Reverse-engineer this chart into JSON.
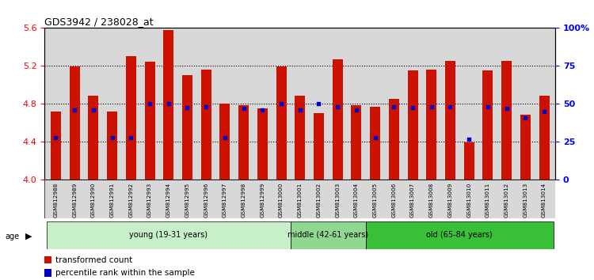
{
  "title": "GDS3942 / 238028_at",
  "samples": [
    "GSM812988",
    "GSM812989",
    "GSM812990",
    "GSM812991",
    "GSM812992",
    "GSM812993",
    "GSM812994",
    "GSM812995",
    "GSM812996",
    "GSM812997",
    "GSM812998",
    "GSM812999",
    "GSM813000",
    "GSM813001",
    "GSM813002",
    "GSM813003",
    "GSM813004",
    "GSM813005",
    "GSM813006",
    "GSM813007",
    "GSM813008",
    "GSM813009",
    "GSM813010",
    "GSM813011",
    "GSM813012",
    "GSM813013",
    "GSM813014"
  ],
  "red_values": [
    4.72,
    5.19,
    4.88,
    4.72,
    5.3,
    5.24,
    5.58,
    5.1,
    5.16,
    4.8,
    4.78,
    4.75,
    5.19,
    4.88,
    4.7,
    5.27,
    4.78,
    4.77,
    4.85,
    5.15,
    5.16,
    5.25,
    4.39,
    5.15,
    5.25,
    4.68,
    4.88
  ],
  "blue_values": [
    4.44,
    4.73,
    4.73,
    4.44,
    4.44,
    4.8,
    4.8,
    4.76,
    4.77,
    4.44,
    4.75,
    4.73,
    4.8,
    4.73,
    4.8,
    4.77,
    4.73,
    4.44,
    4.77,
    4.76,
    4.77,
    4.77,
    4.42,
    4.77,
    4.75,
    4.65,
    4.72
  ],
  "groups": [
    {
      "label": "young (19-31 years)",
      "start": 0,
      "end": 13,
      "color": "#c8f0c8"
    },
    {
      "label": "middle (42-61 years)",
      "start": 13,
      "end": 17,
      "color": "#90d890"
    },
    {
      "label": "old (65-84 years)",
      "start": 17,
      "end": 27,
      "color": "#38c038"
    }
  ],
  "ylim_left": [
    4.0,
    5.6
  ],
  "ylim_right": [
    0,
    100
  ],
  "yticks_left": [
    4.0,
    4.4,
    4.8,
    5.2,
    5.6
  ],
  "yticks_right": [
    0,
    25,
    50,
    75,
    100
  ],
  "bar_color": "#cc1100",
  "dot_color": "#0000cc",
  "bg_color": "#d8d8d8",
  "legend_red_label": "transformed count",
  "legend_blue_label": "percentile rank within the sample"
}
